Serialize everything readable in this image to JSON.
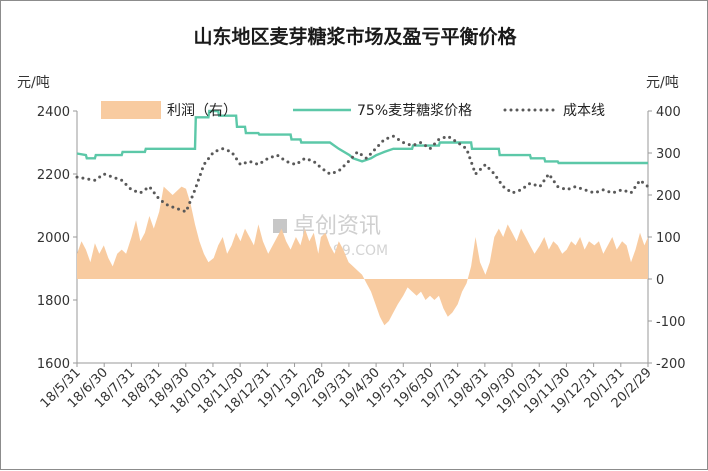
{
  "chart_data": {
    "type": "line",
    "title": "山东地区麦芽糖浆市场及盈亏平衡价格",
    "y_left_label": "元/吨",
    "y_right_label": "元/吨",
    "y_left_range": [
      1600,
      2400
    ],
    "y_left_ticks": [
      "1600",
      "1800",
      "2000",
      "2200",
      "2400"
    ],
    "y_right_range": [
      -200,
      400
    ],
    "y_right_ticks": [
      "-200",
      "-100",
      "0",
      "100",
      "200",
      "300",
      "400"
    ],
    "x_range": [
      "2018-05-31",
      "2020-02-29"
    ],
    "x_tick_labels": [
      "18/5/31",
      "18/6/30",
      "18/7/31",
      "18/8/31",
      "18/9/30",
      "18/10/31",
      "18/11/30",
      "18/12/31",
      "19/1/31",
      "19/2/28",
      "19/3/31",
      "19/4/30",
      "19/5/31",
      "19/6/30",
      "19/7/31",
      "19/8/31",
      "19/9/30",
      "19/10/31",
      "19/11/30",
      "19/12/31",
      "20/1/31",
      "20/2/29"
    ],
    "watermark": "卓创资讯",
    "watermark_sub": "99.COM",
    "legend": {
      "placement": "top"
    },
    "series": [
      {
        "name": "利润（右）",
        "type": "area",
        "axis": "right",
        "color": "#f8cba0",
        "points": [
          [
            "2018-05-31",
            60
          ],
          [
            "2018-06-05",
            90
          ],
          [
            "2018-06-10",
            70
          ],
          [
            "2018-06-15",
            40
          ],
          [
            "2018-06-20",
            85
          ],
          [
            "2018-06-25",
            60
          ],
          [
            "2018-06-30",
            80
          ],
          [
            "2018-07-05",
            50
          ],
          [
            "2018-07-10",
            30
          ],
          [
            "2018-07-15",
            60
          ],
          [
            "2018-07-20",
            70
          ],
          [
            "2018-07-25",
            60
          ],
          [
            "2018-07-31",
            100
          ],
          [
            "2018-08-05",
            140
          ],
          [
            "2018-08-10",
            90
          ],
          [
            "2018-08-15",
            110
          ],
          [
            "2018-08-20",
            150
          ],
          [
            "2018-08-25",
            120
          ],
          [
            "2018-08-31",
            160
          ],
          [
            "2018-09-05",
            220
          ],
          [
            "2018-09-10",
            210
          ],
          [
            "2018-09-15",
            200
          ],
          [
            "2018-09-20",
            210
          ],
          [
            "2018-09-25",
            220
          ],
          [
            "2018-09-30",
            215
          ],
          [
            "2018-10-05",
            180
          ],
          [
            "2018-10-10",
            130
          ],
          [
            "2018-10-15",
            90
          ],
          [
            "2018-10-20",
            60
          ],
          [
            "2018-10-25",
            40
          ],
          [
            "2018-10-31",
            50
          ],
          [
            "2018-11-05",
            80
          ],
          [
            "2018-11-10",
            100
          ],
          [
            "2018-11-15",
            60
          ],
          [
            "2018-11-20",
            80
          ],
          [
            "2018-11-25",
            110
          ],
          [
            "2018-11-30",
            90
          ],
          [
            "2018-12-05",
            120
          ],
          [
            "2018-12-10",
            100
          ],
          [
            "2018-12-15",
            80
          ],
          [
            "2018-12-20",
            130
          ],
          [
            "2018-12-25",
            90
          ],
          [
            "2018-12-31",
            60
          ],
          [
            "2019-01-05",
            80
          ],
          [
            "2019-01-10",
            100
          ],
          [
            "2019-01-15",
            120
          ],
          [
            "2019-01-20",
            90
          ],
          [
            "2019-01-25",
            70
          ],
          [
            "2019-01-31",
            100
          ],
          [
            "2019-02-05",
            80
          ],
          [
            "2019-02-10",
            120
          ],
          [
            "2019-02-15",
            90
          ],
          [
            "2019-02-20",
            110
          ],
          [
            "2019-02-25",
            60
          ],
          [
            "2019-02-28",
            100
          ],
          [
            "2019-03-05",
            110
          ],
          [
            "2019-03-10",
            80
          ],
          [
            "2019-03-15",
            60
          ],
          [
            "2019-03-20",
            90
          ],
          [
            "2019-03-25",
            70
          ],
          [
            "2019-03-31",
            40
          ],
          [
            "2019-04-05",
            30
          ],
          [
            "2019-04-10",
            20
          ],
          [
            "2019-04-15",
            10
          ],
          [
            "2019-04-20",
            -10
          ],
          [
            "2019-04-25",
            -30
          ],
          [
            "2019-04-30",
            -60
          ],
          [
            "2019-05-05",
            -90
          ],
          [
            "2019-05-10",
            -110
          ],
          [
            "2019-05-15",
            -100
          ],
          [
            "2019-05-20",
            -80
          ],
          [
            "2019-05-25",
            -60
          ],
          [
            "2019-05-31",
            -40
          ],
          [
            "2019-06-05",
            -20
          ],
          [
            "2019-06-10",
            -30
          ],
          [
            "2019-06-15",
            -40
          ],
          [
            "2019-06-20",
            -30
          ],
          [
            "2019-06-25",
            -50
          ],
          [
            "2019-06-30",
            -40
          ],
          [
            "2019-07-05",
            -50
          ],
          [
            "2019-07-10",
            -40
          ],
          [
            "2019-07-15",
            -70
          ],
          [
            "2019-07-20",
            -90
          ],
          [
            "2019-07-25",
            -80
          ],
          [
            "2019-07-31",
            -60
          ],
          [
            "2019-08-05",
            -30
          ],
          [
            "2019-08-10",
            -10
          ],
          [
            "2019-08-15",
            30
          ],
          [
            "2019-08-20",
            100
          ],
          [
            "2019-08-25",
            40
          ],
          [
            "2019-08-31",
            10
          ],
          [
            "2019-09-05",
            40
          ],
          [
            "2019-09-10",
            100
          ],
          [
            "2019-09-15",
            120
          ],
          [
            "2019-09-20",
            100
          ],
          [
            "2019-09-25",
            130
          ],
          [
            "2019-09-30",
            110
          ],
          [
            "2019-10-05",
            90
          ],
          [
            "2019-10-10",
            120
          ],
          [
            "2019-10-15",
            100
          ],
          [
            "2019-10-20",
            80
          ],
          [
            "2019-10-25",
            60
          ],
          [
            "2019-10-31",
            80
          ],
          [
            "2019-11-05",
            100
          ],
          [
            "2019-11-10",
            70
          ],
          [
            "2019-11-15",
            90
          ],
          [
            "2019-11-20",
            80
          ],
          [
            "2019-11-25",
            60
          ],
          [
            "2019-11-30",
            70
          ],
          [
            "2019-12-05",
            90
          ],
          [
            "2019-12-10",
            80
          ],
          [
            "2019-12-15",
            100
          ],
          [
            "2019-12-20",
            70
          ],
          [
            "2019-12-25",
            90
          ],
          [
            "2019-12-31",
            80
          ],
          [
            "2020-01-05",
            90
          ],
          [
            "2020-01-10",
            60
          ],
          [
            "2020-01-15",
            80
          ],
          [
            "2020-01-20",
            100
          ],
          [
            "2020-01-25",
            70
          ],
          [
            "2020-01-31",
            90
          ],
          [
            "2020-02-05",
            80
          ],
          [
            "2020-02-10",
            40
          ],
          [
            "2020-02-15",
            70
          ],
          [
            "2020-02-20",
            110
          ],
          [
            "2020-02-25",
            80
          ],
          [
            "2020-02-29",
            100
          ]
        ]
      },
      {
        "name": "75%麦芽糖浆价格",
        "type": "line",
        "axis": "left",
        "color": "#5cc8a8",
        "points": [
          [
            "2018-05-31",
            2265
          ],
          [
            "2018-06-10",
            2260
          ],
          [
            "2018-06-11",
            2250
          ],
          [
            "2018-06-20",
            2250
          ],
          [
            "2018-06-21",
            2260
          ],
          [
            "2018-07-20",
            2260
          ],
          [
            "2018-07-21",
            2270
          ],
          [
            "2018-08-15",
            2270
          ],
          [
            "2018-08-16",
            2280
          ],
          [
            "2018-10-10",
            2280
          ],
          [
            "2018-10-11",
            2380
          ],
          [
            "2018-10-25",
            2380
          ],
          [
            "2018-10-26",
            2400
          ],
          [
            "2018-11-05",
            2400
          ],
          [
            "2018-11-06",
            2385
          ],
          [
            "2018-11-25",
            2385
          ],
          [
            "2018-11-26",
            2350
          ],
          [
            "2018-12-05",
            2350
          ],
          [
            "2018-12-06",
            2330
          ],
          [
            "2018-12-20",
            2330
          ],
          [
            "2018-12-21",
            2325
          ],
          [
            "2019-01-25",
            2325
          ],
          [
            "2019-01-26",
            2310
          ],
          [
            "2019-02-05",
            2310
          ],
          [
            "2019-02-06",
            2300
          ],
          [
            "2019-03-10",
            2300
          ],
          [
            "2019-03-20",
            2280
          ],
          [
            "2019-04-01",
            2260
          ],
          [
            "2019-04-05",
            2250
          ],
          [
            "2019-04-15",
            2240
          ],
          [
            "2019-04-25",
            2250
          ],
          [
            "2019-05-01",
            2260
          ],
          [
            "2019-05-10",
            2270
          ],
          [
            "2019-05-20",
            2280
          ],
          [
            "2019-06-10",
            2280
          ],
          [
            "2019-06-11",
            2290
          ],
          [
            "2019-07-10",
            2290
          ],
          [
            "2019-07-11",
            2300
          ],
          [
            "2019-08-15",
            2300
          ],
          [
            "2019-08-16",
            2280
          ],
          [
            "2019-09-15",
            2280
          ],
          [
            "2019-09-16",
            2260
          ],
          [
            "2019-10-20",
            2260
          ],
          [
            "2019-10-21",
            2250
          ],
          [
            "2019-11-05",
            2250
          ],
          [
            "2019-11-06",
            2240
          ],
          [
            "2019-11-20",
            2240
          ],
          [
            "2019-11-21",
            2235
          ],
          [
            "2020-02-29",
            2235
          ]
        ]
      },
      {
        "name": "成本线",
        "type": "dotted",
        "axis": "left",
        "color": "#595959",
        "points": [
          [
            "2018-05-31",
            2190
          ],
          [
            "2018-06-10",
            2185
          ],
          [
            "2018-06-20",
            2180
          ],
          [
            "2018-06-30",
            2200
          ],
          [
            "2018-07-10",
            2190
          ],
          [
            "2018-07-20",
            2180
          ],
          [
            "2018-07-31",
            2150
          ],
          [
            "2018-08-10",
            2140
          ],
          [
            "2018-08-20",
            2160
          ],
          [
            "2018-08-31",
            2120
          ],
          [
            "2018-09-10",
            2100
          ],
          [
            "2018-09-20",
            2090
          ],
          [
            "2018-09-30",
            2080
          ],
          [
            "2018-10-10",
            2150
          ],
          [
            "2018-10-20",
            2230
          ],
          [
            "2018-10-31",
            2270
          ],
          [
            "2018-11-10",
            2280
          ],
          [
            "2018-11-20",
            2270
          ],
          [
            "2018-11-30",
            2230
          ],
          [
            "2018-12-10",
            2240
          ],
          [
            "2018-12-20",
            2230
          ],
          [
            "2018-12-31",
            2250
          ],
          [
            "2019-01-10",
            2260
          ],
          [
            "2019-01-20",
            2240
          ],
          [
            "2019-01-31",
            2230
          ],
          [
            "2019-02-10",
            2250
          ],
          [
            "2019-02-20",
            2240
          ],
          [
            "2019-02-28",
            2220
          ],
          [
            "2019-03-10",
            2200
          ],
          [
            "2019-03-20",
            2210
          ],
          [
            "2019-03-31",
            2240
          ],
          [
            "2019-04-10",
            2270
          ],
          [
            "2019-04-20",
            2250
          ],
          [
            "2019-04-30",
            2280
          ],
          [
            "2019-05-10",
            2310
          ],
          [
            "2019-05-20",
            2320
          ],
          [
            "2019-05-31",
            2300
          ],
          [
            "2019-06-10",
            2290
          ],
          [
            "2019-06-20",
            2300
          ],
          [
            "2019-06-30",
            2280
          ],
          [
            "2019-07-10",
            2310
          ],
          [
            "2019-07-20",
            2320
          ],
          [
            "2019-07-31",
            2300
          ],
          [
            "2019-08-10",
            2280
          ],
          [
            "2019-08-20",
            2200
          ],
          [
            "2019-08-31",
            2230
          ],
          [
            "2019-09-10",
            2200
          ],
          [
            "2019-09-20",
            2160
          ],
          [
            "2019-09-30",
            2140
          ],
          [
            "2019-10-10",
            2150
          ],
          [
            "2019-10-20",
            2170
          ],
          [
            "2019-10-31",
            2160
          ],
          [
            "2019-11-10",
            2200
          ],
          [
            "2019-11-20",
            2160
          ],
          [
            "2019-11-30",
            2150
          ],
          [
            "2019-12-10",
            2160
          ],
          [
            "2019-12-20",
            2150
          ],
          [
            "2019-12-31",
            2140
          ],
          [
            "2020-01-10",
            2150
          ],
          [
            "2020-01-20",
            2140
          ],
          [
            "2020-01-31",
            2150
          ],
          [
            "2020-02-10",
            2140
          ],
          [
            "2020-02-20",
            2180
          ],
          [
            "2020-02-29",
            2160
          ]
        ]
      }
    ]
  }
}
